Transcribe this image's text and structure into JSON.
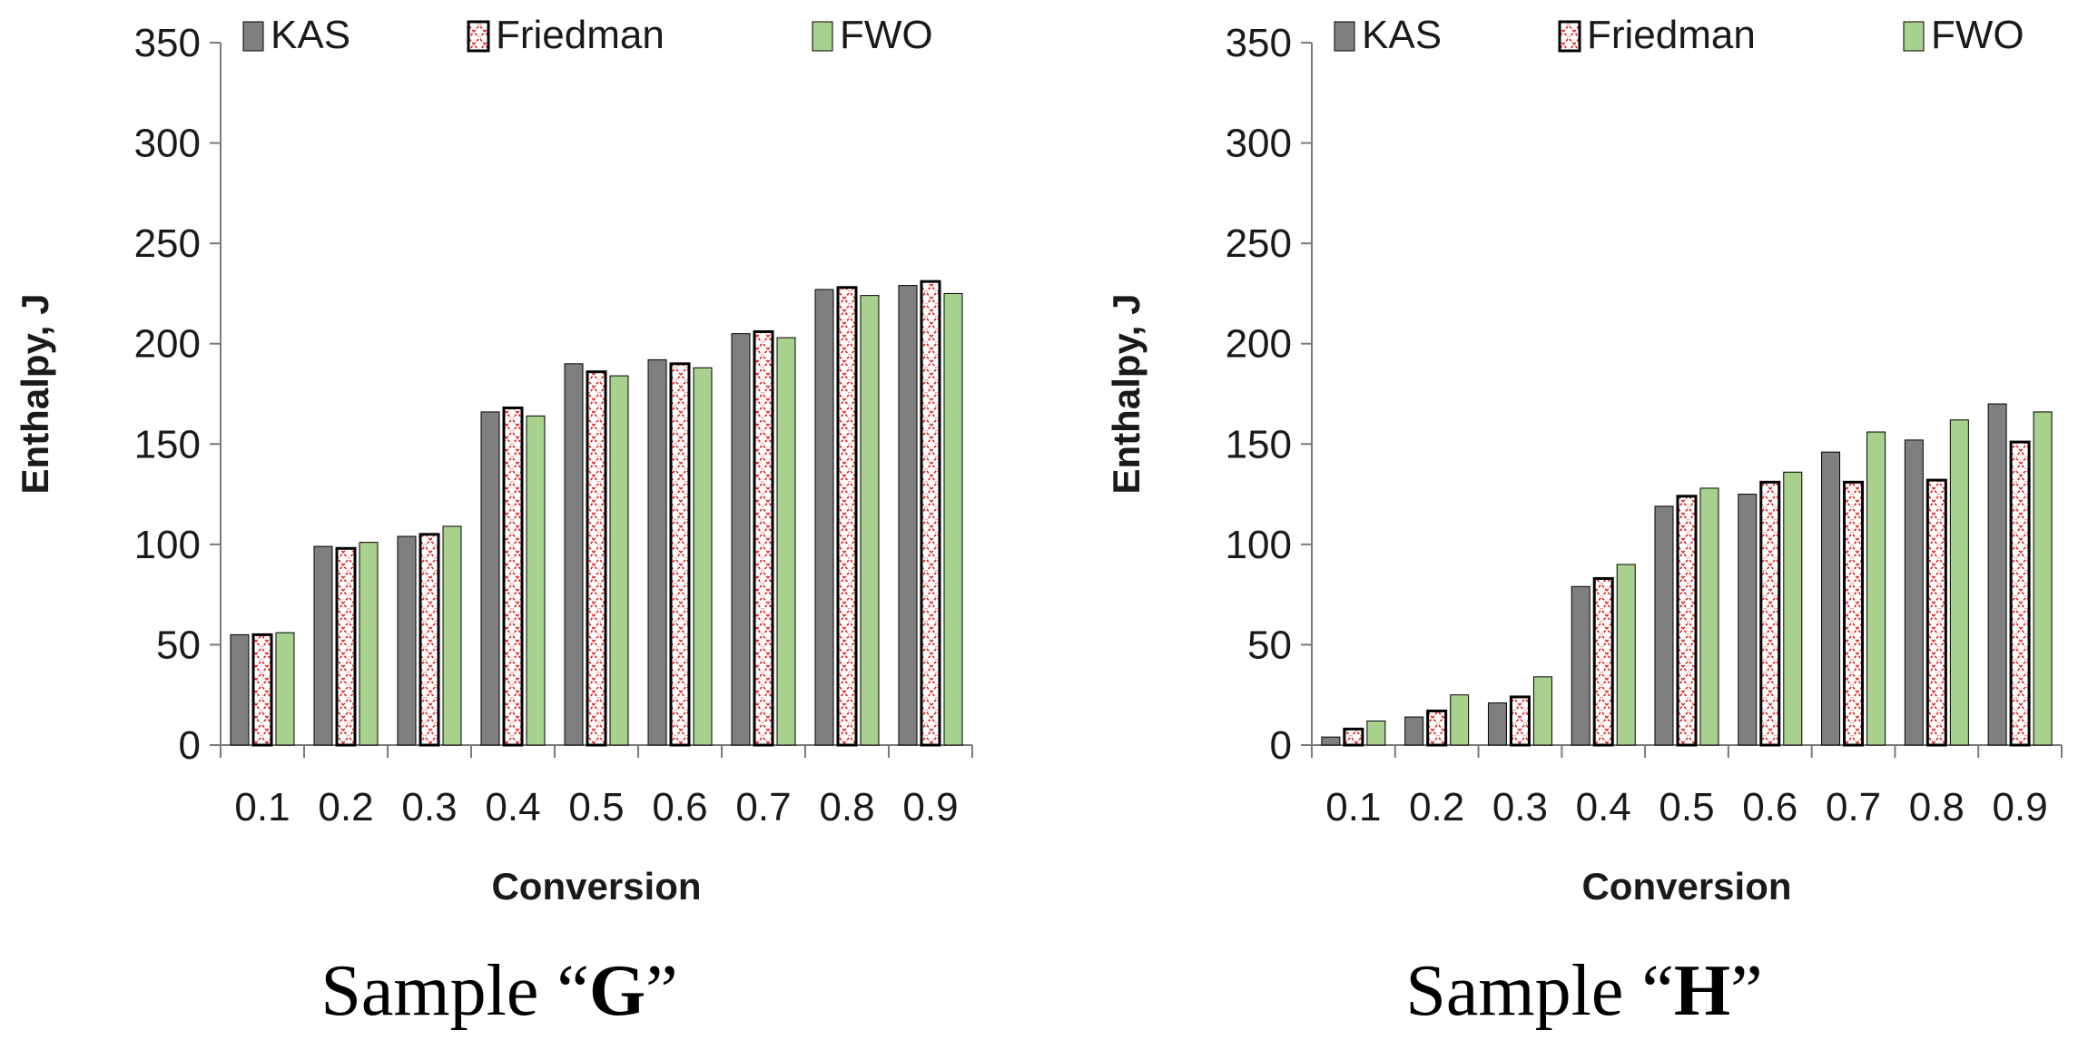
{
  "colors": {
    "kas": "#7f7f7f",
    "friedman_fill": "#ffffff",
    "friedman_pattern": "#e02020",
    "fwo": "#a9d18e",
    "outline": "#000000"
  },
  "legend": [
    "KAS",
    "Friedman",
    "FWO"
  ],
  "chart_data": [
    {
      "type": "bar",
      "title": "",
      "xlabel": "Conversion",
      "ylabel": "Enthalpy, J",
      "ylim": [
        0,
        350
      ],
      "yticks": [
        "0",
        "50",
        "100",
        "150",
        "200",
        "250",
        "300",
        "350"
      ],
      "categories": [
        "0.1",
        "0.2",
        "0.3",
        "0.4",
        "0.5",
        "0.6",
        "0.7",
        "0.8",
        "0.9"
      ],
      "series": [
        {
          "name": "KAS",
          "values": [
            55,
            99,
            104,
            166,
            190,
            192,
            205,
            227,
            229
          ]
        },
        {
          "name": "Friedman",
          "values": [
            55,
            98,
            105,
            168,
            186,
            190,
            206,
            228,
            231
          ]
        },
        {
          "name": "FWO",
          "values": [
            56,
            101,
            109,
            164,
            184,
            188,
            203,
            224,
            225
          ]
        }
      ],
      "caption": {
        "prefix": "Sample “",
        "letter": "G",
        "suffix": "”"
      }
    },
    {
      "type": "bar",
      "title": "",
      "xlabel": "Conversion",
      "ylabel": "Enthalpy, J",
      "ylim": [
        0,
        350
      ],
      "yticks": [
        "0",
        "50",
        "100",
        "150",
        "200",
        "250",
        "300",
        "350"
      ],
      "categories": [
        "0.1",
        "0.2",
        "0.3",
        "0.4",
        "0.5",
        "0.6",
        "0.7",
        "0.8",
        "0.9"
      ],
      "series": [
        {
          "name": "KAS",
          "values": [
            4,
            14,
            21,
            79,
            119,
            125,
            146,
            152,
            170
          ]
        },
        {
          "name": "Friedman",
          "values": [
            8,
            17,
            24,
            83,
            124,
            131,
            131,
            132,
            151
          ]
        },
        {
          "name": "FWO",
          "values": [
            12,
            25,
            34,
            90,
            128,
            136,
            156,
            162,
            166
          ]
        }
      ],
      "caption": {
        "prefix": "Sample “",
        "letter": "H",
        "suffix": "”"
      }
    }
  ]
}
